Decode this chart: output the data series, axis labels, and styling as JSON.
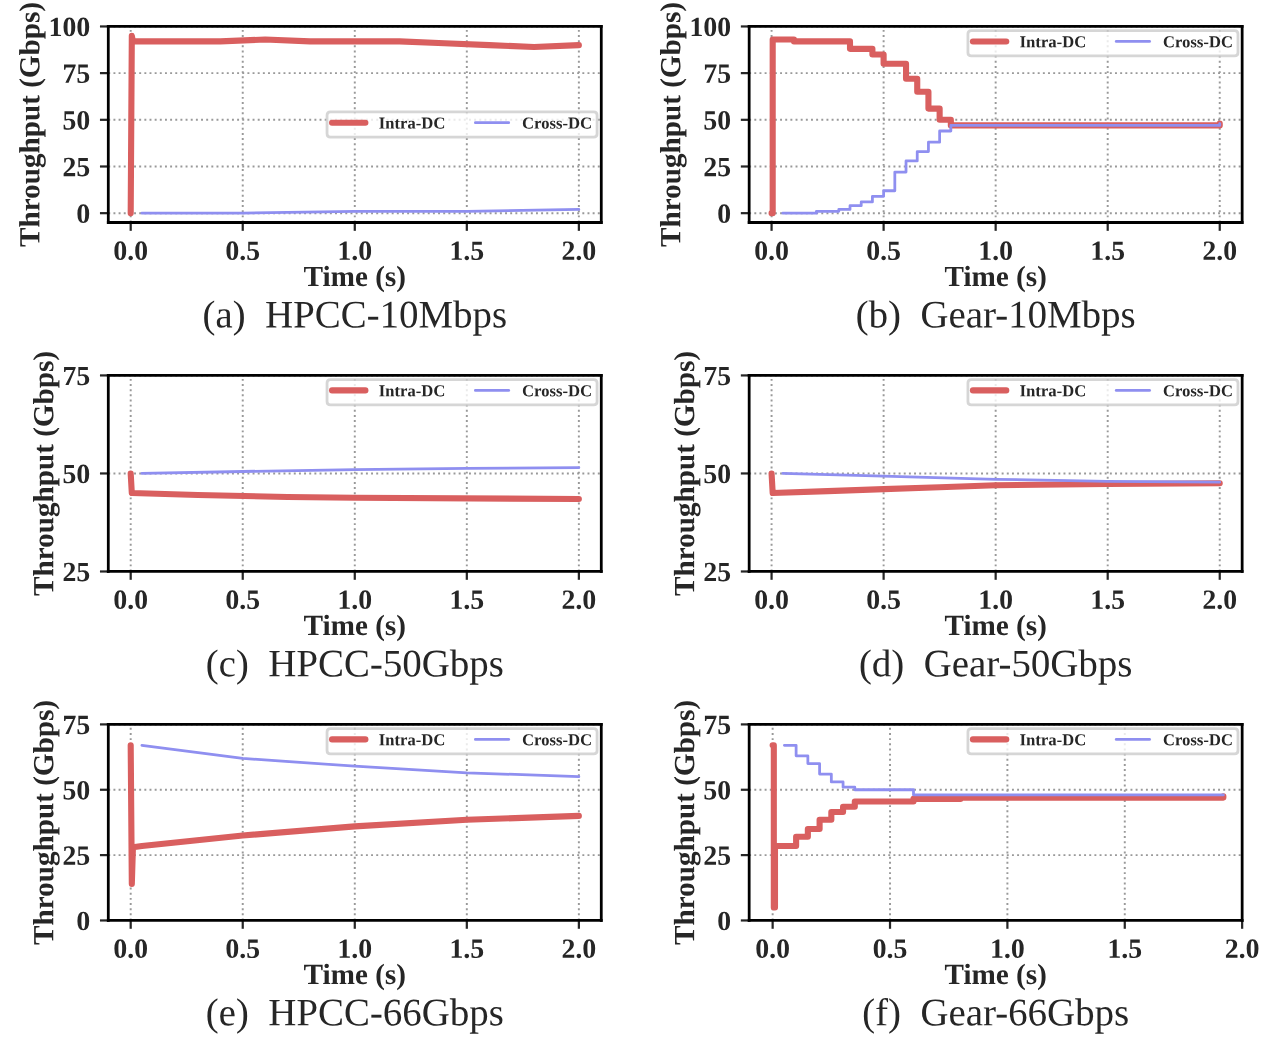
{
  "chart_data": [
    {
      "type": "line",
      "title": "(a)  HPCC-10Mbps",
      "xlabel": "Time (s)",
      "ylabel": "Throughput (Gbps)",
      "xlim": [
        -0.1,
        2.1
      ],
      "ylim": [
        -5,
        100
      ],
      "xticks": [
        {
          "value": 0,
          "label": "0.0"
        },
        {
          "value": 0.5,
          "label": "0.5"
        },
        {
          "value": 1,
          "label": "1.0"
        },
        {
          "value": 1.5,
          "label": "1.5"
        },
        {
          "value": 2,
          "label": "2.0"
        }
      ],
      "yticks": [
        0,
        25,
        50,
        75,
        100
      ],
      "grid": true,
      "legend": "center right",
      "series": [
        {
          "name": "Intra-DC",
          "color": "#d95f5f",
          "x": [
            0,
            0.005,
            0.01,
            0.2,
            0.4,
            0.6,
            0.8,
            1.0,
            1.2,
            1.4,
            1.6,
            1.8,
            2.0
          ],
          "values": [
            0,
            95,
            92,
            92,
            92,
            93,
            92,
            92,
            92,
            91,
            90,
            89,
            90
          ]
        },
        {
          "name": "Cross-DC",
          "color": "#8f8ff0",
          "x": [
            0.05,
            0.5,
            1.0,
            1.5,
            2.0
          ],
          "values": [
            0,
            0,
            1,
            1,
            2
          ]
        }
      ]
    },
    {
      "type": "line",
      "title": "(b)  Gear-10Mbps",
      "xlabel": "Time (s)",
      "ylabel": "Throughput (Gbps)",
      "xlim": [
        -0.1,
        2.1
      ],
      "ylim": [
        -5,
        100
      ],
      "xticks": [
        {
          "value": 0,
          "label": "0.0"
        },
        {
          "value": 0.5,
          "label": "0.5"
        },
        {
          "value": 1,
          "label": "1.0"
        },
        {
          "value": 1.5,
          "label": "1.5"
        },
        {
          "value": 2,
          "label": "2.0"
        }
      ],
      "yticks": [
        0,
        25,
        50,
        75,
        100
      ],
      "grid": true,
      "legend": "top right",
      "series": [
        {
          "name": "Intra-DC",
          "type": "step",
          "color": "#d95f5f",
          "x": [
            0,
            0.005,
            0.1,
            0.3,
            0.35,
            0.45,
            0.5,
            0.55,
            0.6,
            0.65,
            0.7,
            0.75,
            0.8,
            2.0
          ],
          "values": [
            0,
            93,
            92,
            92,
            88,
            85,
            80,
            80,
            72,
            65,
            56,
            50,
            47,
            48
          ]
        },
        {
          "name": "Cross-DC",
          "type": "step",
          "color": "#8f8ff0",
          "x": [
            0.05,
            0.2,
            0.3,
            0.35,
            0.4,
            0.45,
            0.5,
            0.55,
            0.6,
            0.65,
            0.7,
            0.75,
            0.8,
            2.0
          ],
          "values": [
            0,
            1,
            2,
            4,
            6,
            9,
            12,
            22,
            28,
            33,
            38,
            44,
            47,
            48
          ]
        }
      ]
    },
    {
      "type": "line",
      "title": "(c)  HPCC-50Gbps",
      "xlabel": "Time (s)",
      "ylabel": "Throughput (Gbps)",
      "xlim": [
        -0.1,
        2.1
      ],
      "ylim": [
        25,
        75
      ],
      "xticks": [
        {
          "value": 0,
          "label": "0.0"
        },
        {
          "value": 0.5,
          "label": "0.5"
        },
        {
          "value": 1,
          "label": "1.0"
        },
        {
          "value": 1.5,
          "label": "1.5"
        },
        {
          "value": 2,
          "label": "2.0"
        }
      ],
      "yticks": [
        25,
        50,
        75
      ],
      "grid": true,
      "legend": "top right",
      "series": [
        {
          "name": "Intra-DC",
          "color": "#d95f5f",
          "x": [
            0,
            0.005,
            0.3,
            0.7,
            1.0,
            2.0
          ],
          "values": [
            50,
            45,
            44.5,
            44,
            43.8,
            43.5
          ]
        },
        {
          "name": "Cross-DC",
          "color": "#8f8ff0",
          "x": [
            0.05,
            0.5,
            1.0,
            1.5,
            2.0
          ],
          "values": [
            50,
            50.5,
            51,
            51.3,
            51.5
          ]
        }
      ]
    },
    {
      "type": "line",
      "title": "(d)  Gear-50Gbps",
      "xlabel": "Time (s)",
      "ylabel": "Throughput (Gbps)",
      "xlim": [
        -0.1,
        2.1
      ],
      "ylim": [
        25,
        75
      ],
      "xticks": [
        {
          "value": 0,
          "label": "0.0"
        },
        {
          "value": 0.5,
          "label": "0.5"
        },
        {
          "value": 1,
          "label": "1.0"
        },
        {
          "value": 1.5,
          "label": "1.5"
        },
        {
          "value": 2,
          "label": "2.0"
        }
      ],
      "yticks": [
        25,
        50,
        75
      ],
      "grid": true,
      "legend": "top right",
      "series": [
        {
          "name": "Intra-DC",
          "color": "#d95f5f",
          "x": [
            0,
            0.005,
            0.25,
            0.5,
            0.75,
            1.0,
            1.5,
            2.0
          ],
          "values": [
            50,
            45,
            45.5,
            46,
            46.5,
            47,
            47.3,
            47.5
          ]
        },
        {
          "name": "Cross-DC",
          "color": "#8f8ff0",
          "x": [
            0.05,
            0.5,
            1.0,
            1.5,
            2.0
          ],
          "values": [
            50,
            49.3,
            48.5,
            48,
            47.8
          ]
        }
      ]
    },
    {
      "type": "line",
      "title": "(e)  HPCC-66Gbps",
      "xlabel": "Time (s)",
      "ylabel": "Throughput (Gbps)",
      "xlim": [
        -0.1,
        2.1
      ],
      "ylim": [
        0,
        75
      ],
      "xticks": [
        {
          "value": 0,
          "label": "0.0"
        },
        {
          "value": 0.5,
          "label": "0.5"
        },
        {
          "value": 1,
          "label": "1.0"
        },
        {
          "value": 1.5,
          "label": "1.5"
        },
        {
          "value": 2,
          "label": "2.0"
        }
      ],
      "yticks": [
        0,
        25,
        50,
        75
      ],
      "grid": true,
      "legend": "top right",
      "series": [
        {
          "name": "Intra-DC",
          "color": "#d95f5f",
          "x": [
            0,
            0.005,
            0.01,
            0.05,
            0.5,
            1.0,
            1.5,
            2.0
          ],
          "values": [
            67,
            14,
            28,
            28.5,
            32.5,
            36,
            38.5,
            40
          ]
        },
        {
          "name": "Cross-DC",
          "color": "#8f8ff0",
          "x": [
            0.05,
            0.5,
            1.0,
            1.5,
            2.0
          ],
          "values": [
            67,
            62,
            59,
            56.5,
            55
          ]
        }
      ]
    },
    {
      "type": "line",
      "title": "(f)  Gear-66Gbps",
      "xlabel": "Time (s)",
      "ylabel": "Throughput (Gbps)",
      "xlim": [
        -0.1,
        2.0
      ],
      "ylim": [
        0,
        75
      ],
      "xticks": [
        {
          "value": 0,
          "label": "0.0"
        },
        {
          "value": 0.5,
          "label": "0.5"
        },
        {
          "value": 1,
          "label": "1.0"
        },
        {
          "value": 1.5,
          "label": "1.5"
        },
        {
          "value": 2,
          "label": "2.0"
        }
      ],
      "yticks": [
        0,
        25,
        50,
        75
      ],
      "grid": true,
      "legend": "top right",
      "series": [
        {
          "name": "Intra-DC",
          "type": "step",
          "color": "#d95f5f",
          "x": [
            0,
            0.005,
            0.01,
            0.1,
            0.15,
            0.2,
            0.25,
            0.3,
            0.35,
            0.6,
            0.8,
            1.92
          ],
          "values": [
            67,
            5,
            28.5,
            32,
            35,
            38.5,
            41.5,
            43.5,
            45.5,
            46.5,
            47,
            47.5
          ]
        },
        {
          "name": "Cross-DC",
          "type": "step",
          "color": "#8f8ff0",
          "x": [
            0.05,
            0.1,
            0.15,
            0.2,
            0.25,
            0.3,
            0.35,
            0.6,
            1.92
          ],
          "values": [
            67,
            63,
            60,
            56,
            53,
            51,
            50,
            48,
            48
          ]
        }
      ]
    }
  ]
}
